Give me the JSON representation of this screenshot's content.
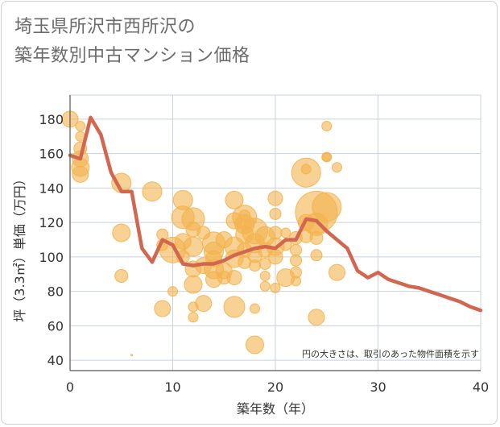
{
  "header": {
    "title_line1": "埼玉県所沢市西所沢の",
    "title_line2": "築年数別中古マンション価格"
  },
  "chart_data": {
    "type": "scatter",
    "title": "埼玉県所沢市西所沢の築年数別中古マンション価格",
    "xlabel": "築年数（年）",
    "ylabel": "坪（3.3㎡）単価（万円）",
    "xlim": [
      0,
      40
    ],
    "ylim": [
      34,
      194
    ],
    "xticks": [
      "0",
      "10",
      "20",
      "30",
      "40"
    ],
    "yticks": [
      "40",
      "60",
      "80",
      "100",
      "120",
      "140",
      "160",
      "180"
    ],
    "note": "円の大きさは、取引のあった物件面積を示す",
    "bubble_color": "#f3b34c",
    "line_color": "#d2664f",
    "grid": true,
    "bubbles": [
      [
        0,
        180,
        10
      ],
      [
        1,
        176,
        6
      ],
      [
        1,
        170,
        6
      ],
      [
        1,
        163,
        8
      ],
      [
        1,
        157,
        10
      ],
      [
        1,
        152,
        11
      ],
      [
        1,
        148,
        10
      ],
      [
        5,
        143,
        12
      ],
      [
        5,
        114,
        11
      ],
      [
        5,
        89,
        8
      ],
      [
        6,
        43,
        1
      ],
      [
        8,
        138,
        12
      ],
      [
        9,
        113,
        7
      ],
      [
        9,
        107,
        7
      ],
      [
        9,
        70,
        10
      ],
      [
        10,
        80,
        6
      ],
      [
        10,
        104,
        16
      ],
      [
        11,
        133,
        12
      ],
      [
        11,
        123,
        14
      ],
      [
        11,
        109,
        10
      ],
      [
        11,
        100,
        8
      ],
      [
        12,
        122,
        14
      ],
      [
        12,
        116,
        9
      ],
      [
        12,
        106,
        12
      ],
      [
        12,
        93,
        10
      ],
      [
        12,
        84,
        11
      ],
      [
        12,
        71,
        6
      ],
      [
        12,
        65,
        6
      ],
      [
        13,
        114,
        8
      ],
      [
        13,
        95,
        10
      ],
      [
        13,
        73,
        10
      ],
      [
        14,
        108,
        14
      ],
      [
        14,
        103,
        12
      ],
      [
        14,
        99,
        10
      ],
      [
        14,
        93,
        12
      ],
      [
        14,
        87,
        10
      ],
      [
        15,
        110,
        10
      ],
      [
        15,
        92,
        10
      ],
      [
        15,
        88,
        8
      ],
      [
        16,
        133,
        11
      ],
      [
        16,
        121,
        10
      ],
      [
        16,
        106,
        12
      ],
      [
        16,
        99,
        11
      ],
      [
        16,
        88,
        9
      ],
      [
        16,
        71,
        13
      ],
      [
        17,
        123,
        15
      ],
      [
        17,
        119,
        12
      ],
      [
        17,
        113,
        11
      ],
      [
        17,
        104,
        9
      ],
      [
        17,
        97,
        8
      ],
      [
        17,
        124,
        7
      ],
      [
        18,
        115,
        16
      ],
      [
        18,
        108,
        12
      ],
      [
        18,
        101,
        9
      ],
      [
        18,
        95,
        7
      ],
      [
        18,
        49,
        11
      ],
      [
        18,
        70,
        6
      ],
      [
        19,
        112,
        12
      ],
      [
        19,
        104,
        9
      ],
      [
        19,
        96,
        7
      ],
      [
        19,
        89,
        6
      ],
      [
        19,
        83,
        6
      ],
      [
        20,
        134,
        9
      ],
      [
        20,
        125,
        7
      ],
      [
        20,
        114,
        8
      ],
      [
        20,
        106,
        11
      ],
      [
        20,
        100,
        9
      ],
      [
        20,
        82,
        6
      ],
      [
        21,
        114,
        6
      ],
      [
        21,
        107,
        7
      ],
      [
        21,
        88,
        11
      ],
      [
        22,
        111,
        8
      ],
      [
        22,
        104,
        7
      ],
      [
        22,
        98,
        7
      ],
      [
        22,
        91,
        7
      ],
      [
        22,
        86,
        6
      ],
      [
        23,
        149,
        18
      ],
      [
        23,
        151,
        6
      ],
      [
        23,
        120,
        10
      ],
      [
        23,
        112,
        8
      ],
      [
        24,
        126,
        26
      ],
      [
        24,
        119,
        14
      ],
      [
        24,
        111,
        8
      ],
      [
        24,
        101,
        7
      ],
      [
        24,
        65,
        10
      ],
      [
        25,
        176,
        6
      ],
      [
        25,
        158,
        6
      ],
      [
        25,
        158,
        5
      ],
      [
        25,
        129,
        18
      ],
      [
        26,
        152,
        6
      ],
      [
        26,
        91,
        10
      ]
    ],
    "series": [
      {
        "x": [
          0,
          1,
          2,
          3,
          4,
          5,
          6,
          7,
          8,
          9,
          10,
          11,
          12,
          13,
          14,
          15,
          16,
          17,
          18,
          19,
          20,
          21,
          22,
          23,
          24,
          25,
          26,
          27,
          28,
          29,
          30,
          31,
          32,
          33,
          34,
          35,
          36,
          37,
          38,
          39,
          40
        ],
        "y": [
          159,
          157,
          181,
          171,
          149,
          138,
          138,
          105,
          97,
          110,
          107,
          96,
          95,
          96,
          96,
          98,
          101,
          103,
          105,
          106,
          105,
          110,
          110,
          122,
          121,
          115,
          110,
          105,
          92,
          88,
          91,
          87,
          85,
          83,
          82,
          80,
          78,
          76,
          74,
          71,
          69
        ]
      }
    ]
  }
}
